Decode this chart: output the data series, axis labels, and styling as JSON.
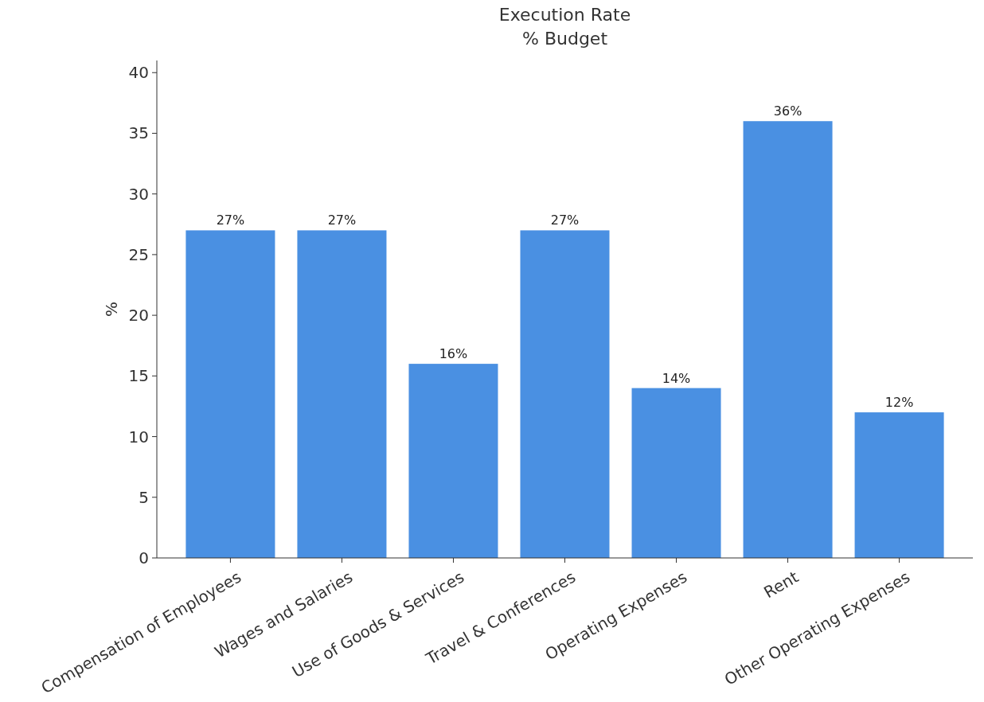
{
  "chart_data": {
    "type": "bar",
    "title": "Execution Rate\n% Budget",
    "ylabel": "%",
    "categories": [
      "Compensation of Employees",
      "Wages and Salaries",
      "Use of Goods & Services",
      "Travel & Conferences",
      "Operating Expenses",
      "Rent",
      "Other Operating Expenses"
    ],
    "values": [
      27,
      27,
      16,
      27,
      14,
      36,
      12
    ],
    "value_labels": [
      "27%",
      "27%",
      "16%",
      "27%",
      "14%",
      "36%",
      "12%"
    ],
    "color": "#4a90e2",
    "ylim": [
      0,
      41
    ],
    "yticks": [
      0,
      5,
      10,
      15,
      20,
      25,
      30,
      35,
      40
    ],
    "grid": false
  }
}
